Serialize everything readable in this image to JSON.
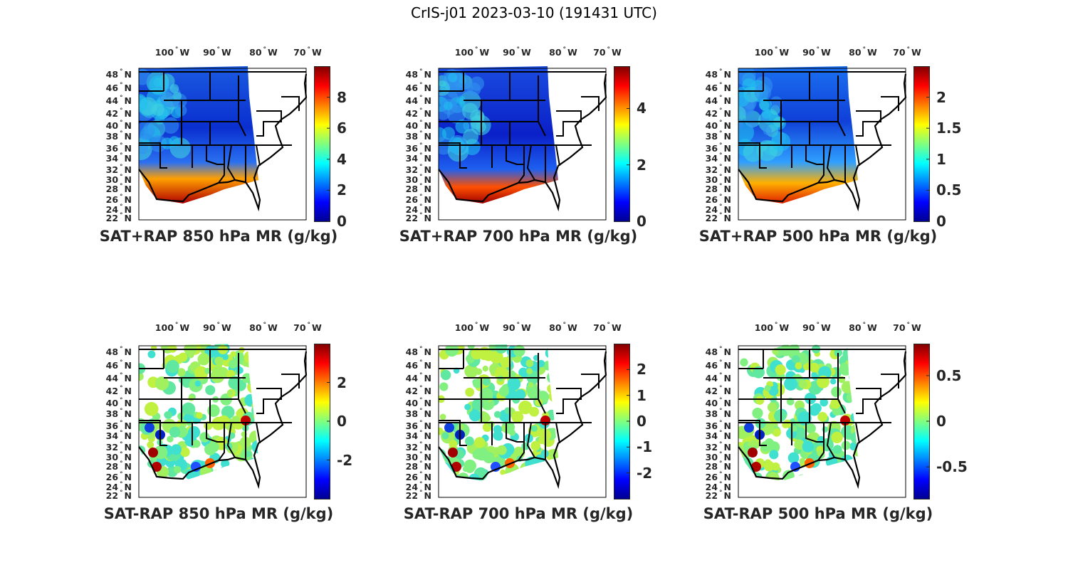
{
  "figure": {
    "title": "CrIS-j01 2023-03-10 (191431 UTC)"
  },
  "colormap": "jet",
  "colormap_colors": [
    "#00008f",
    "#0000ff",
    "#00ffff",
    "#ffff00",
    "#ff0000",
    "#800000"
  ],
  "lon_labels": [
    {
      "deg": "100",
      "hem": "W"
    },
    {
      "deg": "90",
      "hem": "W"
    },
    {
      "deg": "80",
      "hem": "W"
    },
    {
      "deg": "70",
      "hem": "W"
    }
  ],
  "lat_labels": [
    {
      "deg": "48",
      "hem": "N"
    },
    {
      "deg": "46",
      "hem": "N"
    },
    {
      "deg": "44",
      "hem": "N"
    },
    {
      "deg": "42",
      "hem": "N"
    },
    {
      "deg": "40",
      "hem": "N"
    },
    {
      "deg": "38",
      "hem": "N"
    },
    {
      "deg": "36",
      "hem": "N"
    },
    {
      "deg": "34",
      "hem": "N"
    },
    {
      "deg": "32",
      "hem": "N"
    },
    {
      "deg": "30",
      "hem": "N"
    },
    {
      "deg": "28",
      "hem": "N"
    },
    {
      "deg": "26",
      "hem": "N"
    },
    {
      "deg": "24",
      "hem": "N"
    },
    {
      "deg": "22",
      "hem": "N"
    }
  ],
  "degree_symbol": "°",
  "panels": [
    {
      "title": "SAT+RAP 850 hPa MR (g/kg)",
      "kind": "sum",
      "colorbar": {
        "range": [
          0,
          10
        ],
        "ticks": [
          0,
          2,
          4,
          6,
          8
        ],
        "tick_labels": [
          "0",
          "2",
          "4",
          "6",
          "8"
        ]
      }
    },
    {
      "title": "SAT+RAP 700 hPa MR (g/kg)",
      "kind": "sum",
      "colorbar": {
        "range": [
          0,
          5.5
        ],
        "ticks": [
          0,
          2,
          4
        ],
        "tick_labels": [
          "0",
          "2",
          "4"
        ]
      }
    },
    {
      "title": "SAT+RAP 500 hPa MR (g/kg)",
      "kind": "sum",
      "colorbar": {
        "range": [
          0,
          2.5
        ],
        "ticks": [
          0,
          0.5,
          1,
          1.5,
          2
        ],
        "tick_labels": [
          "0",
          "0.5",
          "1",
          "1.5",
          "2"
        ]
      }
    },
    {
      "title": "SAT-RAP 850 hPa MR (g/kg)",
      "kind": "diff",
      "colorbar": {
        "range": [
          -4,
          4
        ],
        "ticks": [
          -2,
          0,
          2
        ],
        "tick_labels": [
          "-2",
          "0",
          "2"
        ]
      }
    },
    {
      "title": "SAT-RAP 700 hPa MR (g/kg)",
      "kind": "diff",
      "colorbar": {
        "range": [
          -3,
          3
        ],
        "ticks": [
          -2,
          -1,
          0,
          1,
          2
        ],
        "tick_labels": [
          "-2",
          "-1",
          "0",
          "1",
          "2"
        ]
      }
    },
    {
      "title": "SAT-RAP 500 hPa MR (g/kg)",
      "kind": "diff",
      "colorbar": {
        "range": [
          -0.85,
          0.85
        ],
        "ticks": [
          -0.5,
          0,
          0.5
        ],
        "tick_labels": [
          "-0.5",
          "0",
          "0.5"
        ]
      }
    }
  ]
}
